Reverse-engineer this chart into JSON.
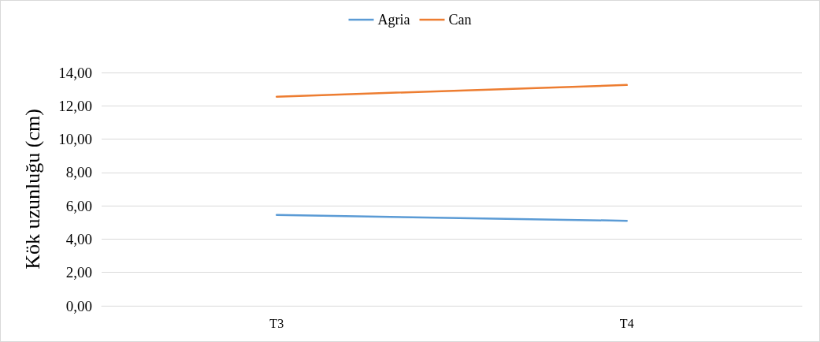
{
  "chart_data": {
    "type": "line",
    "ylabel": "Kök uzunluğu (cm)",
    "categories": [
      "T3",
      "T4"
    ],
    "series": [
      {
        "name": "Agria",
        "color": "#5b9bd5",
        "values": [
          5.45,
          5.1
        ]
      },
      {
        "name": "Can",
        "color": "#ed7d31",
        "values": [
          12.55,
          13.25
        ]
      }
    ],
    "ylim": [
      0,
      14
    ],
    "yticks": [
      {
        "value": 0,
        "label": "0,00"
      },
      {
        "value": 2,
        "label": "2,00"
      },
      {
        "value": 4,
        "label": "4,00"
      },
      {
        "value": 6,
        "label": "6,00"
      },
      {
        "value": 8,
        "label": "8,00"
      },
      {
        "value": 10,
        "label": "10,00"
      },
      {
        "value": 12,
        "label": "12,00"
      },
      {
        "value": 14,
        "label": "14,00"
      }
    ],
    "grid": "y",
    "legend": "top",
    "marker": "none",
    "line_style": "solid"
  }
}
